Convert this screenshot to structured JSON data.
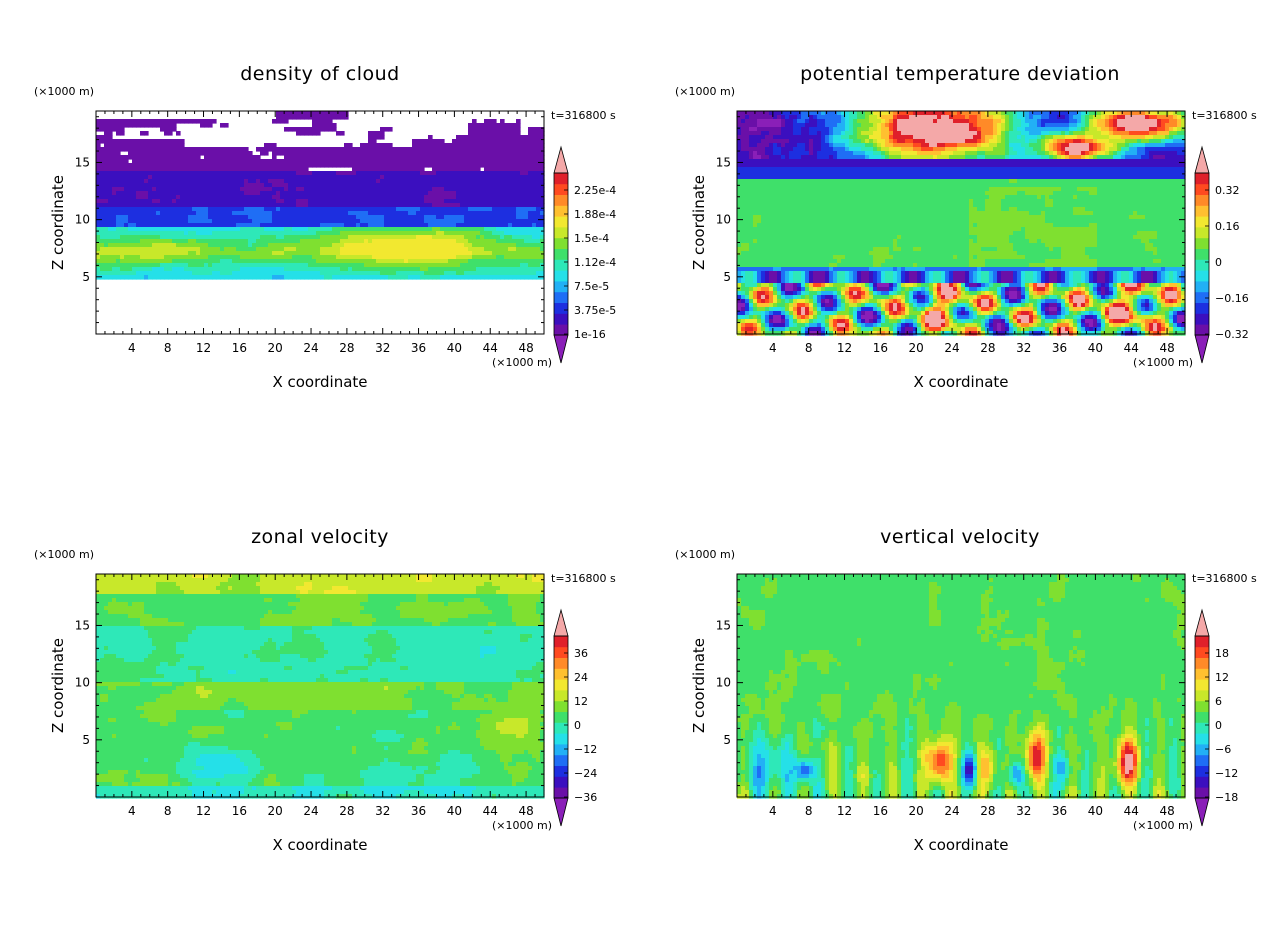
{
  "chart_data": [
    {
      "type": "heatmap",
      "title": "density of cloud",
      "xlabel": "X coordinate",
      "ylabel": "Z coordinate",
      "x_unit": "(×1000 m)",
      "y_unit": "(×1000 m)",
      "time_label": "t=316800 s",
      "xlim": [
        0,
        50
      ],
      "ylim": [
        0,
        19.5
      ],
      "x_ticks": [
        "4",
        "8",
        "12",
        "16",
        "20",
        "24",
        "28",
        "32",
        "36",
        "40",
        "44",
        "48"
      ],
      "y_ticks": [
        "5",
        "10",
        "15"
      ],
      "colorbar": {
        "labels": [
          "2.25e-4",
          "1.88e-4",
          "1.5e-4",
          "1.12e-4",
          "7.5e-5",
          "3.75e-5",
          "1e-16"
        ],
        "range": [
          1e-16,
          0.00024
        ],
        "colors": [
          "#6a0fa8",
          "#3b0fbf",
          "#1d2fe0",
          "#1f6ef5",
          "#22b0f5",
          "#25e0e8",
          "#2ee8b8",
          "#3fe06a",
          "#7fe030",
          "#c8e82a",
          "#f2e830",
          "#ffc030",
          "#ff8a28",
          "#ff4a20",
          "#e0202a"
        ]
      }
    },
    {
      "type": "heatmap",
      "title": "potential temperature deviation",
      "xlabel": "X coordinate",
      "ylabel": "Z coordinate",
      "x_unit": "(×1000 m)",
      "y_unit": "(×1000 m)",
      "time_label": "t=316800 s",
      "xlim": [
        0,
        50
      ],
      "ylim": [
        0,
        19.5
      ],
      "x_ticks": [
        "4",
        "8",
        "12",
        "16",
        "20",
        "24",
        "28",
        "32",
        "36",
        "40",
        "44",
        "48"
      ],
      "y_ticks": [
        "5",
        "10",
        "15"
      ],
      "colorbar": {
        "labels": [
          "0.32",
          "0.16",
          "0",
          "−0.16",
          "−0.32"
        ],
        "range": [
          -0.4,
          0.4
        ],
        "colors": [
          "#6a0fa8",
          "#3b0fbf",
          "#1d2fe0",
          "#1f6ef5",
          "#22b0f5",
          "#25e0e8",
          "#2ee8b8",
          "#3fe06a",
          "#7fe030",
          "#c8e82a",
          "#f2e830",
          "#ffc030",
          "#ff8a28",
          "#ff4a20",
          "#e0202a"
        ]
      }
    },
    {
      "type": "heatmap",
      "title": "zonal velocity",
      "xlabel": "X coordinate",
      "ylabel": "Z coordinate",
      "x_unit": "(×1000 m)",
      "y_unit": "(×1000 m)",
      "time_label": "t=316800 s",
      "xlim": [
        0,
        50
      ],
      "ylim": [
        0,
        19.5
      ],
      "x_ticks": [
        "4",
        "8",
        "12",
        "16",
        "20",
        "24",
        "28",
        "32",
        "36",
        "40",
        "44",
        "48"
      ],
      "y_ticks": [
        "5",
        "10",
        "15"
      ],
      "colorbar": {
        "labels": [
          "36",
          "24",
          "12",
          "0",
          "−12",
          "−24",
          "−36"
        ],
        "range": [
          -42,
          42
        ],
        "colors": [
          "#6a0fa8",
          "#3b0fbf",
          "#1d2fe0",
          "#1f6ef5",
          "#22b0f5",
          "#25e0e8",
          "#2ee8b8",
          "#3fe06a",
          "#7fe030",
          "#c8e82a",
          "#f2e830",
          "#ffc030",
          "#ff8a28",
          "#ff4a20",
          "#e0202a"
        ]
      }
    },
    {
      "type": "heatmap",
      "title": "vertical velocity",
      "xlabel": "X coordinate",
      "ylabel": "Z coordinate",
      "x_unit": "(×1000 m)",
      "y_unit": "(×1000 m)",
      "time_label": "t=316800 s",
      "xlim": [
        0,
        50
      ],
      "ylim": [
        0,
        19.5
      ],
      "x_ticks": [
        "4",
        "8",
        "12",
        "16",
        "20",
        "24",
        "28",
        "32",
        "36",
        "40",
        "44",
        "48"
      ],
      "y_ticks": [
        "5",
        "10",
        "15"
      ],
      "colorbar": {
        "labels": [
          "18",
          "12",
          "6",
          "0",
          "−6",
          "−12",
          "−18"
        ],
        "range": [
          -21,
          21
        ],
        "colors": [
          "#6a0fa8",
          "#3b0fbf",
          "#1d2fe0",
          "#1f6ef5",
          "#22b0f5",
          "#25e0e8",
          "#2ee8b8",
          "#3fe06a",
          "#7fe030",
          "#c8e82a",
          "#f2e830",
          "#ffc030",
          "#ff8a28",
          "#ff4a20",
          "#e0202a"
        ]
      }
    }
  ],
  "colors": {
    "over": "#f4a8a8",
    "under": "#8a1fb8",
    "frame": "#000000"
  }
}
